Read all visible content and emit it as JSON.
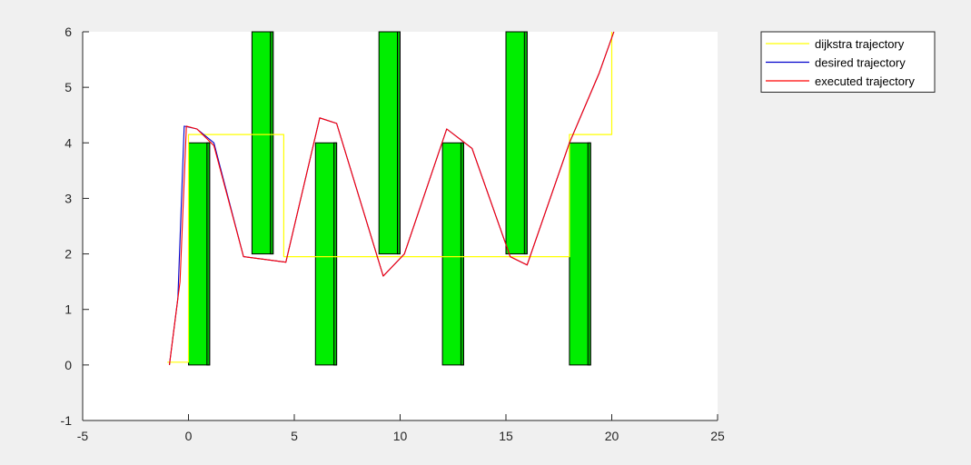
{
  "chart_data": {
    "type": "line",
    "title": "",
    "xlabel": "",
    "ylabel": "",
    "xlim": [
      -5,
      25
    ],
    "ylim": [
      -1,
      6
    ],
    "xticks": [
      -5,
      0,
      5,
      10,
      15,
      20,
      25
    ],
    "yticks": [
      -1,
      0,
      1,
      2,
      3,
      4,
      5,
      6
    ],
    "xtick_labels": [
      "-5",
      "0",
      "5",
      "10",
      "15",
      "20",
      "25"
    ],
    "ytick_labels": [
      "-1",
      "0",
      "1",
      "2",
      "3",
      "4",
      "5",
      "6"
    ],
    "grid": false,
    "legend_position": "outside top-right",
    "obstacles": [
      {
        "x0": 0,
        "x1": 1,
        "y0": 0,
        "y1": 4
      },
      {
        "x0": 3,
        "x1": 4,
        "y0": 2,
        "y1": 6
      },
      {
        "x0": 6,
        "x1": 7,
        "y0": 0,
        "y1": 4
      },
      {
        "x0": 9,
        "x1": 10,
        "y0": 2,
        "y1": 6
      },
      {
        "x0": 12,
        "x1": 13,
        "y0": 0,
        "y1": 4
      },
      {
        "x0": 15,
        "x1": 16,
        "y0": 2,
        "y1": 6
      },
      {
        "x0": 18,
        "x1": 19,
        "y0": 0,
        "y1": 4
      }
    ],
    "obstacle_color": "#00ee00",
    "series": [
      {
        "name": "dijkstra trajectory",
        "color": "#ffff00",
        "x": [
          -1,
          0,
          0,
          4.5,
          4.5,
          18,
          18,
          20,
          20
        ],
        "y": [
          0.05,
          0.05,
          4.15,
          4.15,
          1.95,
          1.95,
          4.15,
          4.15,
          6
        ]
      },
      {
        "name": "desired trajectory",
        "color": "#0000cc",
        "x": [
          -0.9,
          -0.5,
          -0.2,
          0.4,
          1.2,
          2.6,
          4.6,
          6.2,
          7.0,
          9.2,
          10.2,
          12.2,
          13.4,
          15.2,
          16.0,
          18.0,
          19.4,
          20.1
        ],
        "y": [
          0.0,
          1.2,
          4.3,
          4.25,
          4.0,
          1.95,
          1.85,
          4.45,
          4.35,
          1.6,
          2.0,
          4.25,
          3.9,
          1.95,
          1.8,
          4.0,
          5.25,
          6.0
        ]
      },
      {
        "name": "executed trajectory",
        "color": "#ff0000",
        "x": [
          -0.9,
          -0.4,
          -0.1,
          0.4,
          1.2,
          2.6,
          4.6,
          6.2,
          7.0,
          9.2,
          10.2,
          12.2,
          13.4,
          15.2,
          16.0,
          18.0,
          19.4,
          20.1
        ],
        "y": [
          0.0,
          1.5,
          4.3,
          4.25,
          3.95,
          1.95,
          1.85,
          4.45,
          4.35,
          1.6,
          2.0,
          4.25,
          3.9,
          1.95,
          1.8,
          4.0,
          5.25,
          6.0
        ]
      }
    ]
  }
}
